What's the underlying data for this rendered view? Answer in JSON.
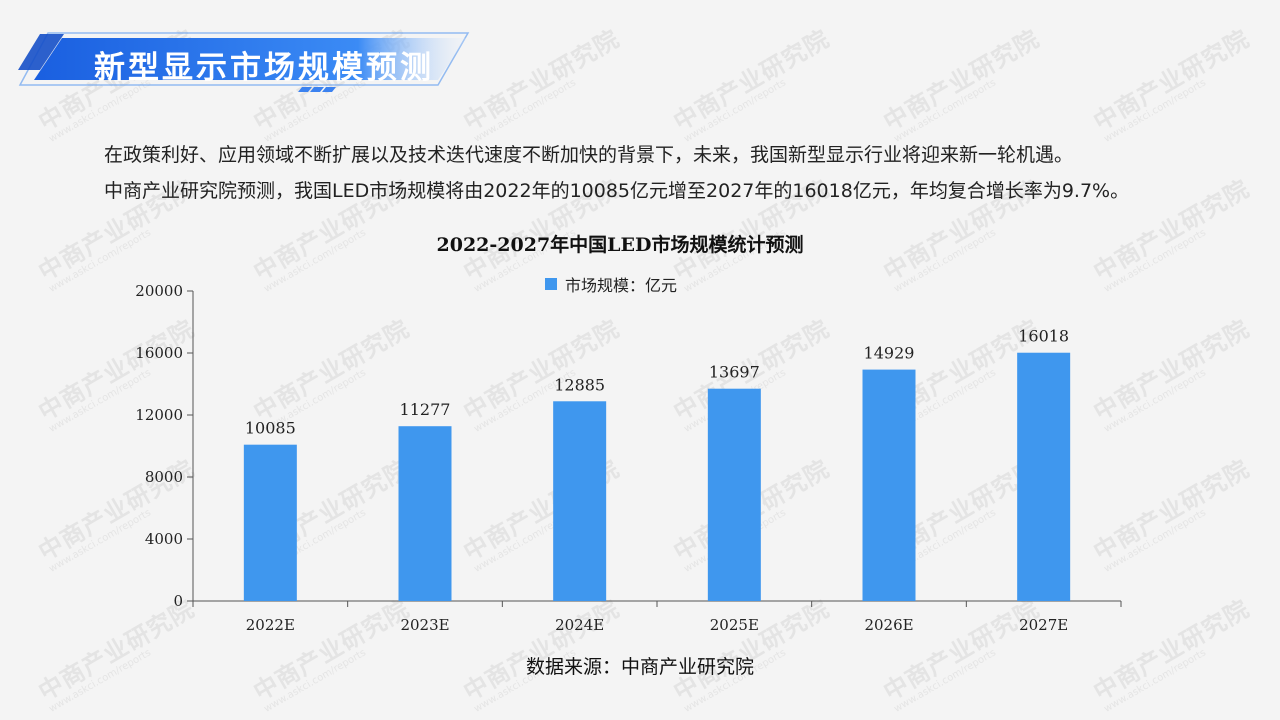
{
  "header": {
    "title": "新型显示市场规模预测"
  },
  "intro": {
    "line1": "在政策利好、应用领域不断扩展以及技术迭代速度不断加快的背景下，未来，我国新型显示行业将迎来新一轮机遇。",
    "line2": "中商产业研究院预测，我国LED市场规模将由2022年的10085亿元增至2027年的16018亿元，年均复合增长率为9.7%。"
  },
  "watermark": {
    "main": "中商产业研究院",
    "sub": "www.askci.com/reports"
  },
  "chart_data": {
    "type": "bar",
    "title": "2022-2027年中国LED市场规模统计预测",
    "categories": [
      "2022E",
      "2023E",
      "2024E",
      "2025E",
      "2026E",
      "2027E"
    ],
    "series": [
      {
        "name": "市场规模：亿元",
        "values": [
          10085,
          11277,
          12885,
          13697,
          14929,
          16018
        ]
      }
    ],
    "ylim": [
      0,
      20000
    ],
    "yticks": [
      0,
      4000,
      8000,
      12000,
      16000,
      20000
    ],
    "xlabel": "",
    "ylabel": "",
    "legend": "top-center",
    "grid": false,
    "bar_color": "#3f97ee"
  },
  "source": "数据来源：中商产业研究院"
}
